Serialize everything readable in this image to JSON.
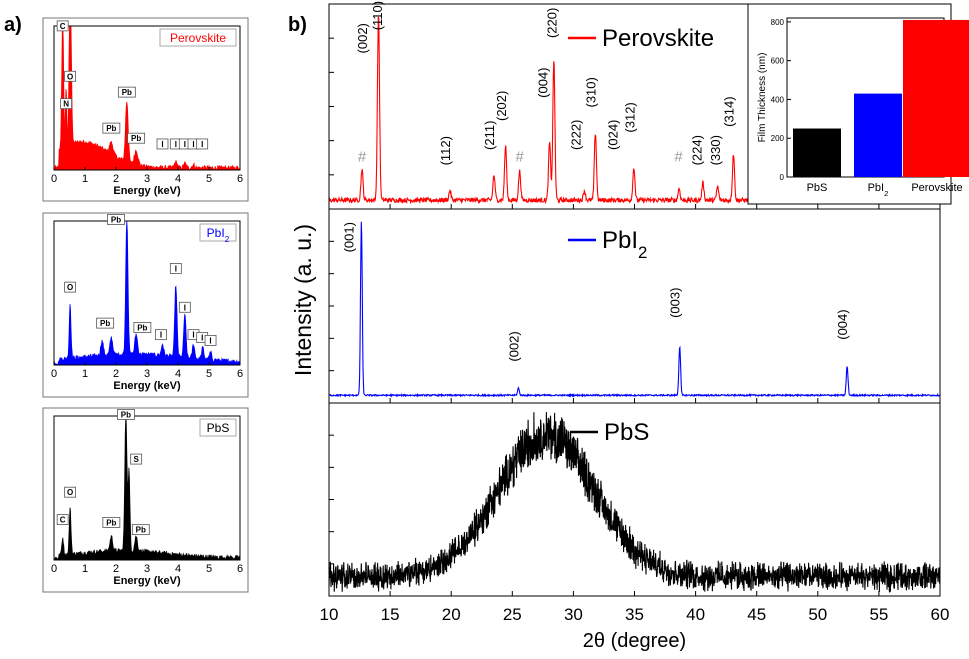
{
  "panel_labels": {
    "a": "a)",
    "b": "b)"
  },
  "chart_data": [
    {
      "type": "line",
      "panel": "a",
      "title": "Perovskite",
      "xlabel": "Energy (keV)",
      "xlim": [
        0,
        6
      ],
      "xticks": [
        "0",
        "1",
        "2",
        "3",
        "4",
        "5",
        "6"
      ],
      "color": "#ff0000",
      "ylim": [
        0,
        100
      ],
      "peaks": [
        {
          "x": 0.28,
          "y": 95,
          "w": 0.04
        },
        {
          "x": 0.52,
          "y": 92,
          "w": 0.04
        },
        {
          "x": 0.39,
          "y": 42,
          "w": 0.03
        },
        {
          "x": 0.53,
          "y": 50,
          "w": 0.05
        },
        {
          "x": 1.85,
          "y": 8,
          "w": 0.08
        },
        {
          "x": 2.35,
          "y": 42,
          "w": 0.06
        },
        {
          "x": 2.65,
          "y": 10,
          "w": 0.08
        },
        {
          "x": 3.93,
          "y": 4,
          "w": 0.06
        },
        {
          "x": 4.22,
          "y": 3,
          "w": 0.06
        },
        {
          "x": 4.5,
          "y": 2,
          "w": 0.06
        }
      ],
      "background": {
        "amplitude": 18,
        "center": 0.9,
        "width": 1.2
      },
      "annotations": [
        {
          "label": "C",
          "x": 0.28,
          "y": 98
        },
        {
          "label": "N",
          "x": 0.39,
          "y": 44
        },
        {
          "label": "O",
          "x": 0.52,
          "y": 63
        },
        {
          "label": "Pb",
          "x": 1.85,
          "y": 27
        },
        {
          "label": "Pb",
          "x": 2.35,
          "y": 52
        },
        {
          "label": "Pb",
          "x": 2.65,
          "y": 20
        },
        {
          "label": "I",
          "x": 3.5,
          "y": 16
        },
        {
          "label": "I",
          "x": 3.93,
          "y": 16
        },
        {
          "label": "I",
          "x": 4.22,
          "y": 16
        },
        {
          "label": "I",
          "x": 4.5,
          "y": 16
        },
        {
          "label": "I",
          "x": 4.78,
          "y": 16
        }
      ]
    },
    {
      "type": "line",
      "panel": "a",
      "title": "PbI",
      "title_subscript": "2",
      "xlabel": "Energy (keV)",
      "xlim": [
        0,
        6
      ],
      "xticks": [
        "0",
        "1",
        "2",
        "3",
        "4",
        "5",
        "6"
      ],
      "color": "#0000ff",
      "ylim": [
        0,
        100
      ],
      "peaks": [
        {
          "x": 0.52,
          "y": 38,
          "w": 0.04
        },
        {
          "x": 1.55,
          "y": 10,
          "w": 0.06
        },
        {
          "x": 1.85,
          "y": 12,
          "w": 0.06
        },
        {
          "x": 2.35,
          "y": 95,
          "w": 0.05
        },
        {
          "x": 2.65,
          "y": 14,
          "w": 0.06
        },
        {
          "x": 3.5,
          "y": 8,
          "w": 0.05
        },
        {
          "x": 3.93,
          "y": 50,
          "w": 0.05
        },
        {
          "x": 4.22,
          "y": 30,
          "w": 0.05
        },
        {
          "x": 4.5,
          "y": 10,
          "w": 0.05
        },
        {
          "x": 4.8,
          "y": 8,
          "w": 0.05
        },
        {
          "x": 5.05,
          "y": 5,
          "w": 0.05
        }
      ],
      "background": {
        "amplitude": 6,
        "center": 2.5,
        "width": 2.5
      },
      "annotations": [
        {
          "label": "Pb",
          "x": 2.0,
          "y": 99
        },
        {
          "label": "O",
          "x": 0.52,
          "y": 52
        },
        {
          "label": "Pb",
          "x": 1.65,
          "y": 27
        },
        {
          "label": "Pb",
          "x": 2.85,
          "y": 24
        },
        {
          "label": "I",
          "x": 3.93,
          "y": 65
        },
        {
          "label": "I",
          "x": 4.22,
          "y": 38
        },
        {
          "label": "I",
          "x": 3.45,
          "y": 19
        },
        {
          "label": "I",
          "x": 4.5,
          "y": 19
        },
        {
          "label": "I",
          "x": 4.78,
          "y": 17
        },
        {
          "label": "I",
          "x": 5.05,
          "y": 15
        }
      ]
    },
    {
      "type": "line",
      "panel": "a",
      "title": "PbS",
      "xlabel": "Energy (keV)",
      "xlim": [
        0,
        6
      ],
      "xticks": [
        "0",
        "1",
        "2",
        "3",
        "4",
        "5",
        "6"
      ],
      "color": "#000000",
      "ylim": [
        0,
        100
      ],
      "peaks": [
        {
          "x": 0.28,
          "y": 12,
          "w": 0.04
        },
        {
          "x": 0.52,
          "y": 32,
          "w": 0.04
        },
        {
          "x": 1.85,
          "y": 10,
          "w": 0.06
        },
        {
          "x": 2.32,
          "y": 95,
          "w": 0.05
        },
        {
          "x": 2.42,
          "y": 55,
          "w": 0.04
        },
        {
          "x": 2.65,
          "y": 10,
          "w": 0.06
        }
      ],
      "background": {
        "amplitude": 5,
        "center": 2.2,
        "width": 2
      },
      "annotations": [
        {
          "label": "Pb",
          "x": 2.32,
          "y": 99
        },
        {
          "label": "S",
          "x": 2.65,
          "y": 68
        },
        {
          "label": "O",
          "x": 0.52,
          "y": 45
        },
        {
          "label": "C",
          "x": 0.28,
          "y": 26
        },
        {
          "label": "Pb",
          "x": 1.85,
          "y": 24
        },
        {
          "label": "Pb",
          "x": 2.8,
          "y": 19
        }
      ]
    },
    {
      "type": "line",
      "panel": "b",
      "xlabel": "2θ (degree)",
      "ylabel": "Intensity (a. u.)",
      "xlim": [
        10,
        60
      ],
      "xticks": [
        "10",
        "15",
        "20",
        "25",
        "30",
        "35",
        "40",
        "45",
        "50",
        "55",
        "60"
      ],
      "series": [
        {
          "name": "Perovskite",
          "color": "#ff0000",
          "baseline": 2,
          "noise": 1.2,
          "ylim": [
            0,
            100
          ],
          "peaks": [
            {
              "x": 12.7,
              "y": 16,
              "w": 0.12
            },
            {
              "x": 14.05,
              "y": 96,
              "w": 0.12
            },
            {
              "x": 19.9,
              "y": 5,
              "w": 0.12
            },
            {
              "x": 23.5,
              "y": 13,
              "w": 0.12
            },
            {
              "x": 24.45,
              "y": 28,
              "w": 0.12
            },
            {
              "x": 25.6,
              "y": 15,
              "w": 0.12
            },
            {
              "x": 28.05,
              "y": 30,
              "w": 0.12
            },
            {
              "x": 28.4,
              "y": 73,
              "w": 0.12
            },
            {
              "x": 30.9,
              "y": 5,
              "w": 0.12
            },
            {
              "x": 31.8,
              "y": 35,
              "w": 0.12
            },
            {
              "x": 34.95,
              "y": 17,
              "w": 0.12
            },
            {
              "x": 38.65,
              "y": 6,
              "w": 0.12
            },
            {
              "x": 40.6,
              "y": 9,
              "w": 0.12
            },
            {
              "x": 41.8,
              "y": 7,
              "w": 0.12
            },
            {
              "x": 43.1,
              "y": 24,
              "w": 0.12
            }
          ],
          "annotations": [
            {
              "label": "#",
              "x": 12.7,
              "y": 22
            },
            {
              "label": "(002)",
              "x": 13.1,
              "y": 78
            },
            {
              "label": "(110)",
              "x": 14.35,
              "y": 90
            },
            {
              "label": "(112)",
              "x": 19.9,
              "y": 20
            },
            {
              "label": "(211)",
              "x": 23.5,
              "y": 28
            },
            {
              "label": "(202)",
              "x": 24.5,
              "y": 43
            },
            {
              "label": "#",
              "x": 25.6,
              "y": 22
            },
            {
              "label": "(004)",
              "x": 27.9,
              "y": 55
            },
            {
              "label": "(220)",
              "x": 28.6,
              "y": 86
            },
            {
              "label": "(222)",
              "x": 30.6,
              "y": 28
            },
            {
              "label": "(310)",
              "x": 31.8,
              "y": 50
            },
            {
              "label": "(024)",
              "x": 33.6,
              "y": 28
            },
            {
              "label": "(312)",
              "x": 35.0,
              "y": 37
            },
            {
              "label": "#",
              "x": 38.6,
              "y": 22
            },
            {
              "label": "(224)",
              "x": 40.5,
              "y": 20
            },
            {
              "label": "(330)",
              "x": 42.0,
              "y": 20
            },
            {
              "label": "(314)",
              "x": 43.1,
              "y": 40
            }
          ]
        },
        {
          "name": "PbI",
          "name_subscript": "2",
          "color": "#0000ff",
          "baseline": 1.5,
          "noise": 0.4,
          "ylim": [
            0,
            100
          ],
          "peaks": [
            {
              "x": 12.65,
              "y": 96,
              "w": 0.1
            },
            {
              "x": 25.5,
              "y": 4,
              "w": 0.1
            },
            {
              "x": 38.7,
              "y": 27,
              "w": 0.1
            },
            {
              "x": 52.4,
              "y": 16,
              "w": 0.1
            }
          ],
          "annotations": [
            {
              "label": "(001)",
              "x": 12.0,
              "y": 80
            },
            {
              "label": "(002)",
              "x": 25.5,
              "y": 20
            },
            {
              "label": "(003)",
              "x": 38.7,
              "y": 44
            },
            {
              "label": "(004)",
              "x": 52.4,
              "y": 32
            }
          ]
        },
        {
          "name": "PbS",
          "color": "#000000",
          "baseline": 8,
          "noise": 4.5,
          "ylim": [
            0,
            100
          ],
          "broad_peak": {
            "x": 27.8,
            "y": 78,
            "w": 5.6
          },
          "annotations": []
        }
      ]
    },
    {
      "type": "bar",
      "panel": "b-inset",
      "categories": [
        "PbS",
        "PbI",
        "Perovskite"
      ],
      "category_subscripts": [
        "",
        "2",
        ""
      ],
      "values": [
        250,
        430,
        810
      ],
      "colors": [
        "#000000",
        "#0000ff",
        "#ff0000"
      ],
      "ylabel": "Film Thickness (nm)",
      "ylim": [
        0,
        820
      ],
      "yticks": [
        "0",
        "200",
        "400",
        "600",
        "800"
      ]
    }
  ]
}
